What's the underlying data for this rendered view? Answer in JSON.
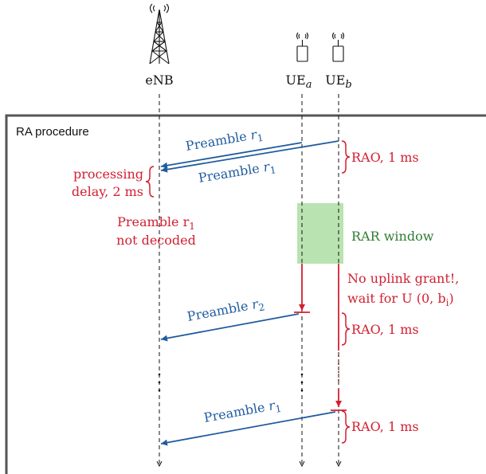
{
  "nodes": {
    "enb": "eNB",
    "ue_a": "UE",
    "ue_a_sub": "a",
    "ue_b": "UE",
    "ue_b_sub": "b"
  },
  "frame": {
    "title": "RA procedure"
  },
  "messages": {
    "m1": {
      "text": "Preamble r",
      "sub": "1"
    },
    "m2": {
      "text": "Preamble r",
      "sub": "1"
    },
    "m3": {
      "text": "Preamble r",
      "sub": "2"
    },
    "m4": {
      "text": "Preamble r",
      "sub": "1"
    }
  },
  "annotations": {
    "rao1": "RAO, 1 ms",
    "rao2": "RAO, 1 ms",
    "rao3": "RAO, 1 ms",
    "processing_line1": "processing",
    "processing_line2": "delay, 2 ms",
    "not_decoded_line1": "Preamble r",
    "not_decoded_sub": "1",
    "not_decoded_line2": "not decoded",
    "rar_window": "RAR window",
    "grant_line1": "No uplink grant!,",
    "grant_line2": "wait for U (0, b",
    "grant_sub": "i",
    "grant_end": ")"
  },
  "colors": {
    "blue": "#1f5b9e",
    "red": "#d22030",
    "green": "#2e7d32",
    "rar_fill": "#b9e3b0"
  },
  "icons": {
    "enb": "antenna-tower-icon",
    "ue": "mobile-phone-icon"
  }
}
